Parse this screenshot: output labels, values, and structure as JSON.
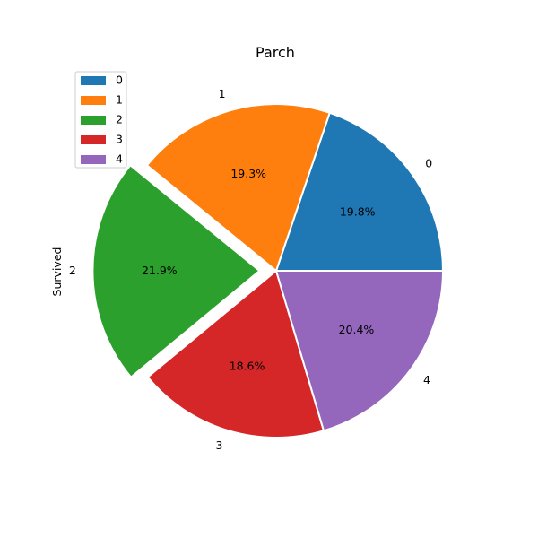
{
  "chart_data": {
    "type": "pie",
    "title": "Parch",
    "ylabel": "Survived",
    "categories": [
      "0",
      "1",
      "2",
      "3",
      "4"
    ],
    "values": [
      19.8,
      19.3,
      21.9,
      18.6,
      20.4
    ],
    "value_labels": [
      "19.8%",
      "19.3%",
      "21.9%",
      "18.6%",
      "20.4%"
    ],
    "colors": [
      "#1f77b4",
      "#ff7f0e",
      "#2ca02c",
      "#d62728",
      "#9467bd"
    ],
    "explode": [
      0,
      0,
      0.1,
      0,
      0
    ],
    "start_angle_deg": 0,
    "direction": "counterclockwise",
    "legend": {
      "position": "upper-left",
      "entries": [
        "0",
        "1",
        "2",
        "3",
        "4"
      ]
    }
  }
}
